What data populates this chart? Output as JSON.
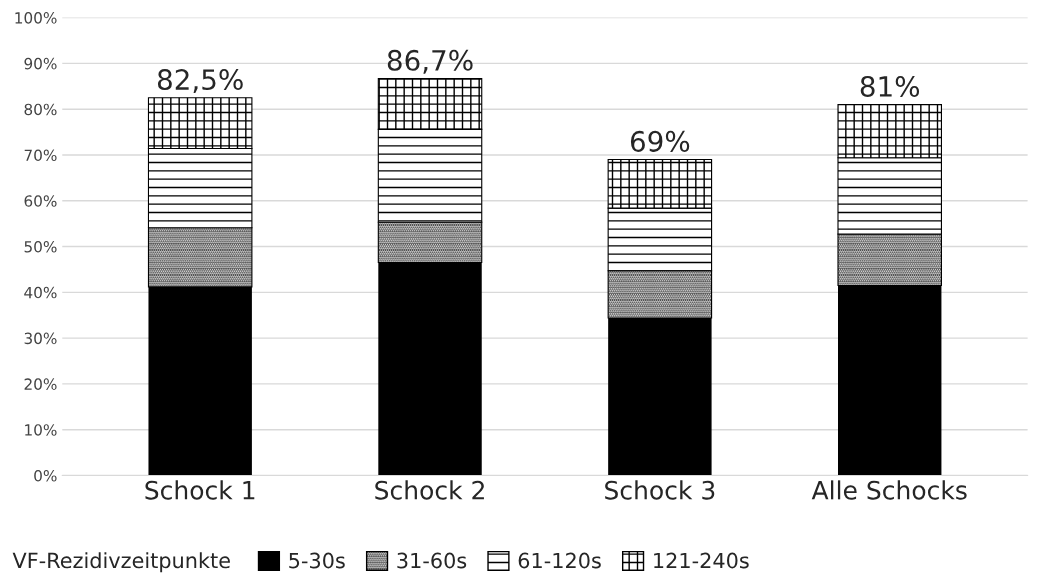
{
  "chart_data": {
    "type": "bar",
    "stacked": true,
    "categories": [
      "Schock 1",
      "Schock 2",
      "Schock 3",
      "Alle Schocks"
    ],
    "series": [
      {
        "name": "5-30s",
        "color": "#000000",
        "values": [
          41.2,
          46.5,
          34.4,
          41.5
        ]
      },
      {
        "name": "31-60s",
        "color": "#000000",
        "values": [
          12.9,
          8.8,
          10.3,
          11.2
        ]
      },
      {
        "name": "61-120s",
        "color": "#000000",
        "values": [
          17.3,
          20.3,
          13.7,
          16.7
        ]
      },
      {
        "name": "121-240s",
        "color": "#000000",
        "values": [
          11.1,
          11.1,
          10.6,
          11.6
        ]
      }
    ],
    "totals": [
      "82,5%",
      "86,7%",
      "69%",
      "81%"
    ],
    "legend_title": "VF-Rezidivzeitpunkte",
    "legend": "bottom",
    "grid": "y",
    "ylim": [
      0,
      100
    ],
    "yticks": [
      {
        "value": 0,
        "label": "0%"
      },
      {
        "value": 10,
        "label": "10%"
      },
      {
        "value": 20,
        "label": "20%"
      },
      {
        "value": 30,
        "label": "30%"
      },
      {
        "value": 40,
        "label": "40%"
      },
      {
        "value": 50,
        "label": "50%"
      },
      {
        "value": 60,
        "label": "60%"
      },
      {
        "value": 70,
        "label": "70%"
      },
      {
        "value": 80,
        "label": "80%"
      },
      {
        "value": 90,
        "label": "90%"
      },
      {
        "value": 100,
        "label": "100%"
      }
    ]
  }
}
